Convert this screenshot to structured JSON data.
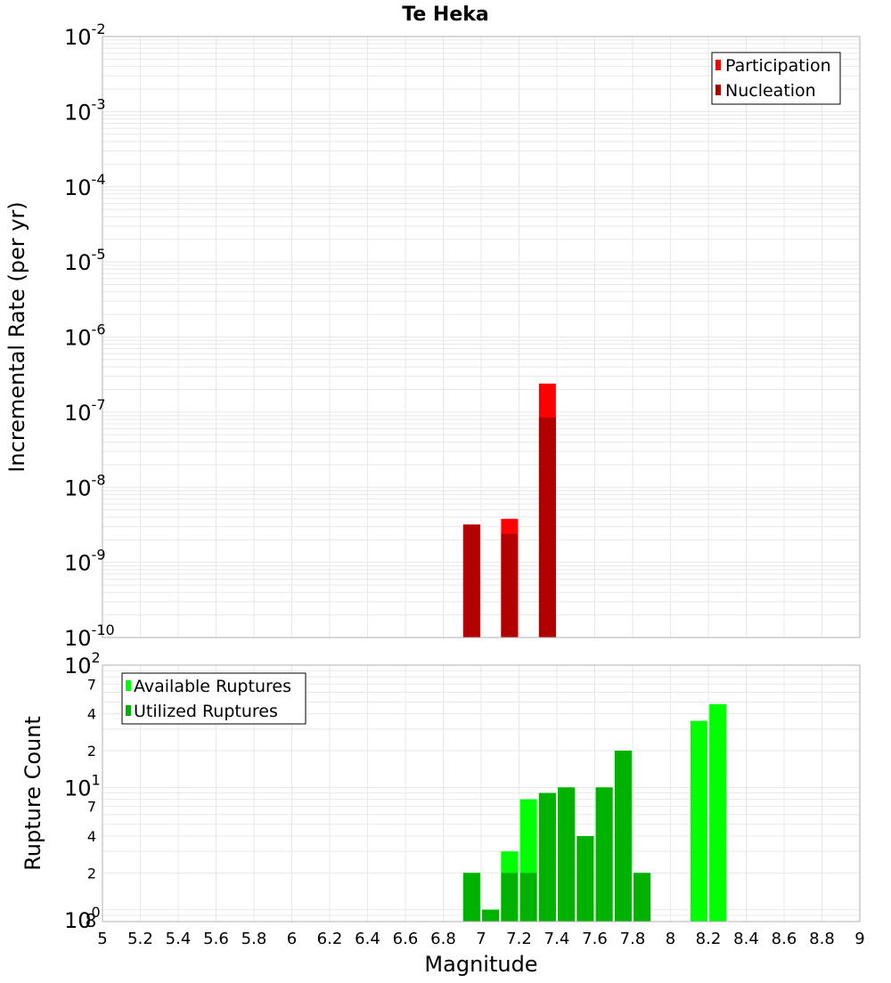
{
  "title": "Te Heka",
  "colors": {
    "participation": "#ff0000",
    "nucleation": "#b20000",
    "available": "#00ff00",
    "utilized": "#00b200",
    "grid": "#e8e8e8",
    "frame": "#b0b0b0"
  },
  "chart_data": [
    {
      "type": "bar",
      "panel": "rate",
      "ylabel": "Incremental Rate (per yr)",
      "yscale": "log",
      "ylim": [
        1e-10,
        0.01
      ],
      "xlim": [
        5,
        9
      ],
      "y_tick_exponents": [
        "-2",
        "-3",
        "-4",
        "-5",
        "-6",
        "-7",
        "-8",
        "-9",
        "-10"
      ],
      "y_tick_base": "10",
      "grid": true,
      "legend_position": "top-right",
      "series": [
        {
          "name": "Participation",
          "x": [
            6.95,
            7.15,
            7.35
          ],
          "values": [
            3.2e-09,
            3.8e-09,
            2.4e-07
          ]
        },
        {
          "name": "Nucleation",
          "x": [
            6.95,
            7.15,
            7.35
          ],
          "values": [
            3.2e-09,
            2.4e-09,
            8.5e-08
          ]
        }
      ]
    },
    {
      "type": "bar",
      "panel": "count",
      "xlabel": "Magnitude",
      "ylabel": "Rupture Count",
      "yscale": "log",
      "ylim": [
        0.8,
        100
      ],
      "xlim": [
        5,
        9
      ],
      "x_ticks": [
        "5",
        "5.2",
        "5.4",
        "5.6",
        "5.8",
        "6",
        "6.2",
        "6.4",
        "6.6",
        "6.8",
        "7",
        "7.2",
        "7.4",
        "7.6",
        "7.8",
        "8",
        "8.2",
        "8.4",
        "8.6",
        "8.8",
        "9"
      ],
      "y_major_ticks": [
        {
          "value": 100,
          "base": "10",
          "exp": "2"
        },
        {
          "value": 10,
          "base": "10",
          "exp": "1"
        },
        {
          "value": 1,
          "base": "10",
          "exp": "0"
        }
      ],
      "y_minor_ticks": [
        {
          "value": 70,
          "label": "7"
        },
        {
          "value": 40,
          "label": "4"
        },
        {
          "value": 20,
          "label": "2"
        },
        {
          "value": 7,
          "label": "7"
        },
        {
          "value": 4,
          "label": "4"
        },
        {
          "value": 2,
          "label": "2"
        },
        {
          "value": 0.8,
          "label": "8"
        }
      ],
      "grid": true,
      "legend_position": "top-left",
      "series": [
        {
          "name": "Available Ruptures",
          "x": [
            6.95,
            7.05,
            7.15,
            7.25,
            7.35,
            7.45,
            7.55,
            7.65,
            7.75,
            7.85,
            8.15,
            8.25
          ],
          "values": [
            2,
            1,
            3,
            8,
            9,
            10,
            4,
            10,
            20,
            2,
            35,
            48
          ]
        },
        {
          "name": "Utilized Ruptures",
          "x": [
            6.95,
            7.05,
            7.15,
            7.25,
            7.35,
            7.45,
            7.55,
            7.65,
            7.75,
            7.85
          ],
          "values": [
            2,
            1,
            2,
            2,
            9,
            10,
            4,
            10,
            20,
            2
          ]
        }
      ]
    }
  ]
}
